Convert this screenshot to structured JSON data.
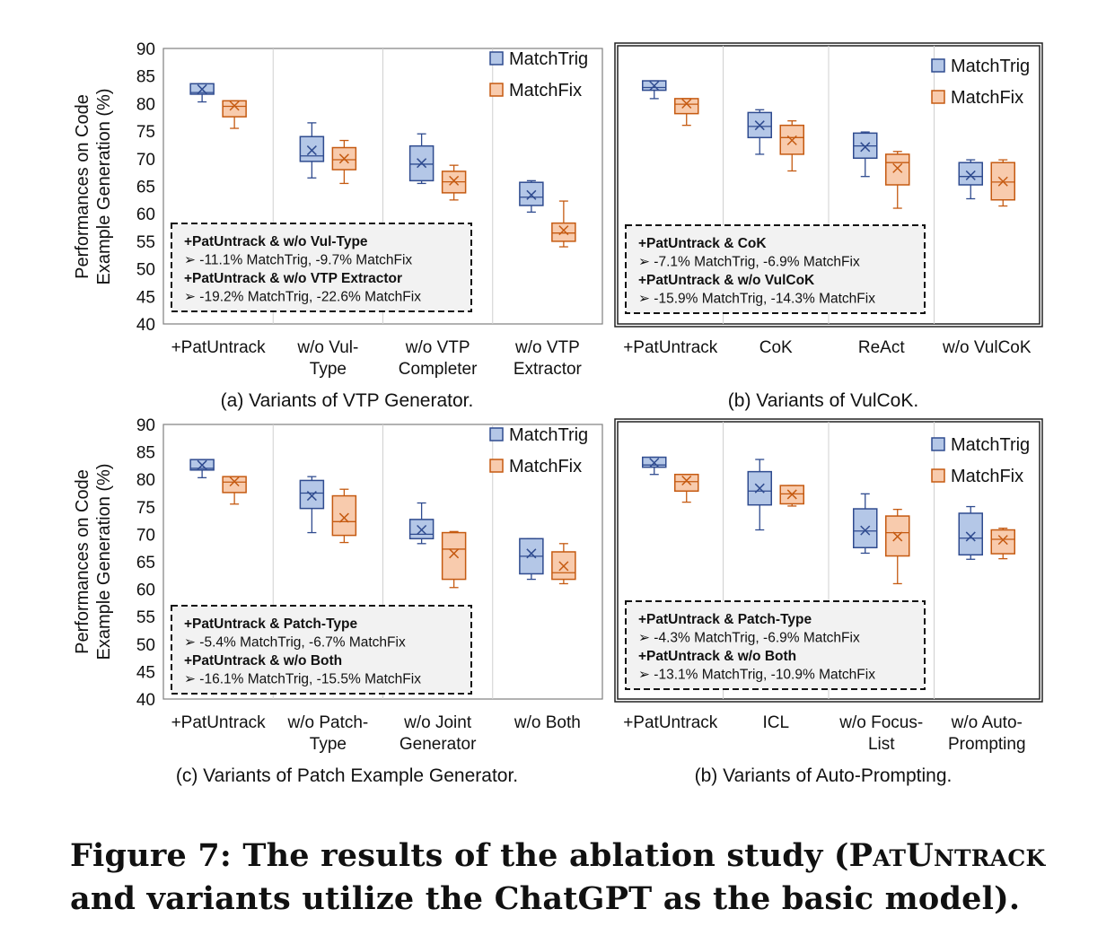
{
  "y_axis_label_lines": [
    "Performances on Code",
    "Example Generation (%)"
  ],
  "legend": [
    "MatchTrig",
    "MatchFix"
  ],
  "colors": {
    "trig_fill": "#b4c7e7",
    "trig_stroke": "#2f4b8f",
    "fix_fill": "#f8cbad",
    "fix_stroke": "#c55a11",
    "grid": "#d0d0d0",
    "frame": "#7f7f7f",
    "text": "#111111",
    "annotation_bg": "#f2f2f2"
  },
  "chart_data": [
    {
      "type": "box",
      "panel": "a",
      "subtitle": "(a) Variants of VTP Generator.",
      "ylim": [
        40,
        90
      ],
      "yticks": [
        40,
        45,
        50,
        55,
        60,
        65,
        70,
        75,
        80,
        85,
        90
      ],
      "grid": "vertical",
      "legend_position": "top-right",
      "show_y_axis": true,
      "categories": [
        [
          "+PatUntrack"
        ],
        [
          "w/o Vul-",
          "Type"
        ],
        [
          "w/o VTP",
          "Completer"
        ],
        [
          "w/o VTP",
          "Extractor"
        ]
      ],
      "series": [
        {
          "name": "MatchTrig",
          "boxes": [
            {
              "min": 80.3,
              "q1": 81.7,
              "median": 82.0,
              "q3": 83.6,
              "max": 83.6,
              "mean": 82.6
            },
            {
              "min": 66.5,
              "q1": 69.5,
              "median": 70.5,
              "q3": 74.0,
              "max": 76.5,
              "mean": 71.5
            },
            {
              "min": 65.5,
              "q1": 66.0,
              "median": 69.0,
              "q3": 72.3,
              "max": 74.5,
              "mean": 69.2
            },
            {
              "min": 60.3,
              "q1": 61.5,
              "median": 63.0,
              "q3": 65.7,
              "max": 66.0,
              "mean": 63.4
            }
          ]
        },
        {
          "name": "MatchFix",
          "boxes": [
            {
              "min": 75.5,
              "q1": 77.6,
              "median": 79.5,
              "q3": 80.5,
              "max": 80.5,
              "mean": 79.6
            },
            {
              "min": 65.5,
              "q1": 68.0,
              "median": 69.8,
              "q3": 72.0,
              "max": 73.3,
              "mean": 70.0
            },
            {
              "min": 62.5,
              "q1": 63.8,
              "median": 65.8,
              "q3": 67.7,
              "max": 68.8,
              "mean": 66.0
            },
            {
              "min": 54.0,
              "q1": 55.0,
              "median": 56.5,
              "q3": 58.3,
              "max": 62.3,
              "mean": 57.0
            }
          ]
        }
      ],
      "annotation": [
        {
          "text": "+PatUntrack & w/o Vul-Type",
          "bold": true
        },
        {
          "text": "➢  -11.1% MatchTrig, -9.7% MatchFix",
          "bold": false
        },
        {
          "text": "+PatUntrack & w/o VTP Extractor",
          "bold": true
        },
        {
          "text": "➢  -19.2% MatchTrig, -22.6% MatchFix",
          "bold": false
        }
      ]
    },
    {
      "type": "box",
      "panel": "b1",
      "subtitle": "(b) Variants of VulCoK.",
      "ylim": [
        40,
        90
      ],
      "yticks": [
        40,
        45,
        50,
        55,
        60,
        65,
        70,
        75,
        80,
        85,
        90
      ],
      "grid": "vertical",
      "legend_position": "top-right",
      "show_y_axis": false,
      "categories": [
        [
          "+PatUntrack"
        ],
        [
          "CoK"
        ],
        [
          "ReAct"
        ],
        [
          "w/o VulCoK"
        ]
      ],
      "series": [
        {
          "name": "MatchTrig",
          "boxes": [
            {
              "min": 80.5,
              "q1": 82.0,
              "median": 82.5,
              "q3": 83.7,
              "max": 83.7,
              "mean": 82.8
            },
            {
              "min": 70.5,
              "q1": 73.5,
              "median": 75.5,
              "q3": 78.0,
              "max": 78.5,
              "mean": 75.7
            },
            {
              "min": 66.5,
              "q1": 69.8,
              "median": 72.0,
              "q3": 74.3,
              "max": 74.5,
              "mean": 71.8
            },
            {
              "min": 62.5,
              "q1": 65.0,
              "median": 66.5,
              "q3": 69.0,
              "max": 69.5,
              "mean": 66.7
            }
          ]
        },
        {
          "name": "MatchFix",
          "boxes": [
            {
              "min": 75.7,
              "q1": 77.8,
              "median": 79.5,
              "q3": 80.5,
              "max": 80.5,
              "mean": 79.6
            },
            {
              "min": 67.5,
              "q1": 70.5,
              "median": 73.5,
              "q3": 75.7,
              "max": 76.5,
              "mean": 73.0
            },
            {
              "min": 60.8,
              "q1": 65.0,
              "median": 69.0,
              "q3": 70.5,
              "max": 71.0,
              "mean": 68.0
            },
            {
              "min": 61.2,
              "q1": 62.3,
              "median": 65.5,
              "q3": 69.0,
              "max": 69.5,
              "mean": 65.6
            }
          ]
        }
      ],
      "annotation": [
        {
          "text": "+PatUntrack & CoK",
          "bold": true
        },
        {
          "text": "➢  -7.1% MatchTrig, -6.9% MatchFix",
          "bold": false
        },
        {
          "text": "+PatUntrack & w/o VulCoK",
          "bold": true
        },
        {
          "text": "➢  -15.9% MatchTrig, -14.3% MatchFix",
          "bold": false
        }
      ]
    },
    {
      "type": "box",
      "panel": "c",
      "subtitle": "(c) Variants of Patch Example Generator.",
      "ylim": [
        40,
        90
      ],
      "yticks": [
        40,
        45,
        50,
        55,
        60,
        65,
        70,
        75,
        80,
        85,
        90
      ],
      "grid": "vertical",
      "legend_position": "top-right",
      "show_y_axis": true,
      "categories": [
        [
          "+PatUntrack"
        ],
        [
          "w/o Patch-",
          "Type"
        ],
        [
          "w/o Joint",
          "Generator"
        ],
        [
          "w/o Both"
        ]
      ],
      "series": [
        {
          "name": "MatchTrig",
          "boxes": [
            {
              "min": 80.3,
              "q1": 81.7,
              "median": 82.0,
              "q3": 83.6,
              "max": 83.6,
              "mean": 82.6
            },
            {
              "min": 70.3,
              "q1": 74.7,
              "median": 77.5,
              "q3": 79.8,
              "max": 80.5,
              "mean": 77.0
            },
            {
              "min": 68.3,
              "q1": 69.2,
              "median": 70.0,
              "q3": 72.7,
              "max": 75.7,
              "mean": 70.8
            },
            {
              "min": 61.8,
              "q1": 62.8,
              "median": 66.0,
              "q3": 69.2,
              "max": 69.2,
              "mean": 66.5
            }
          ]
        },
        {
          "name": "MatchFix",
          "boxes": [
            {
              "min": 75.5,
              "q1": 77.6,
              "median": 79.5,
              "q3": 80.5,
              "max": 80.5,
              "mean": 79.6
            },
            {
              "min": 68.5,
              "q1": 69.8,
              "median": 72.3,
              "q3": 77.0,
              "max": 78.2,
              "mean": 73.0
            },
            {
              "min": 60.3,
              "q1": 61.8,
              "median": 67.3,
              "q3": 70.3,
              "max": 70.5,
              "mean": 66.5
            },
            {
              "min": 61.0,
              "q1": 61.8,
              "median": 63.0,
              "q3": 66.8,
              "max": 68.3,
              "mean": 64.2
            }
          ]
        }
      ],
      "annotation": [
        {
          "text": "+PatUntrack & Patch-Type",
          "bold": true
        },
        {
          "text": "➢  -5.4% MatchTrig, -6.7% MatchFix",
          "bold": false
        },
        {
          "text": "+PatUntrack & w/o Both",
          "bold": true
        },
        {
          "text": "➢  -16.1% MatchTrig, -15.5% MatchFix",
          "bold": false
        }
      ]
    },
    {
      "type": "box",
      "panel": "b2",
      "subtitle": "(b) Variants of Auto-Prompting.",
      "ylim": [
        40,
        90
      ],
      "yticks": [
        40,
        45,
        50,
        55,
        60,
        65,
        70,
        75,
        80,
        85,
        90
      ],
      "grid": "vertical",
      "legend_position": "top-right",
      "show_y_axis": false,
      "categories": [
        [
          "+PatUntrack"
        ],
        [
          "ICL"
        ],
        [
          "w/o Focus-",
          "List"
        ],
        [
          "w/o Auto-",
          "Prompting"
        ]
      ],
      "series": [
        {
          "name": "MatchTrig",
          "boxes": [
            {
              "min": 80.5,
              "q1": 81.8,
              "median": 82.2,
              "q3": 83.6,
              "max": 83.6,
              "mean": 82.6
            },
            {
              "min": 70.5,
              "q1": 75.0,
              "median": 77.5,
              "q3": 81.0,
              "max": 83.2,
              "mean": 78.0
            },
            {
              "min": 66.3,
              "q1": 67.3,
              "median": 70.3,
              "q3": 74.3,
              "max": 77.0,
              "mean": 70.4
            },
            {
              "min": 65.2,
              "q1": 66.0,
              "median": 69.0,
              "q3": 73.5,
              "max": 74.7,
              "mean": 69.3
            }
          ]
        },
        {
          "name": "MatchFix",
          "boxes": [
            {
              "min": 75.5,
              "q1": 77.5,
              "median": 79.2,
              "q3": 80.5,
              "max": 80.5,
              "mean": 79.4
            },
            {
              "min": 74.8,
              "q1": 75.2,
              "median": 77.0,
              "q3": 78.5,
              "max": 78.5,
              "mean": 76.9
            },
            {
              "min": 60.8,
              "q1": 65.8,
              "median": 70.0,
              "q3": 73.0,
              "max": 74.2,
              "mean": 69.3
            },
            {
              "min": 65.3,
              "q1": 66.2,
              "median": 68.8,
              "q3": 70.5,
              "max": 70.8,
              "mean": 68.7
            }
          ]
        }
      ],
      "annotation": [
        {
          "text": "+PatUntrack & Patch-Type",
          "bold": true
        },
        {
          "text": "➢  -4.3% MatchTrig, -6.9% MatchFix",
          "bold": false
        },
        {
          "text": "+PatUntrack & w/o Both",
          "bold": true
        },
        {
          "text": "➢  -13.1% MatchTrig, -10.9% MatchFix",
          "bold": false
        }
      ]
    }
  ],
  "caption": {
    "prefix": "Figure 7: The results of the ablation study (",
    "name": "PatUntrack",
    "suffix": " and variants utilize the ChatGPT as the basic model)."
  }
}
